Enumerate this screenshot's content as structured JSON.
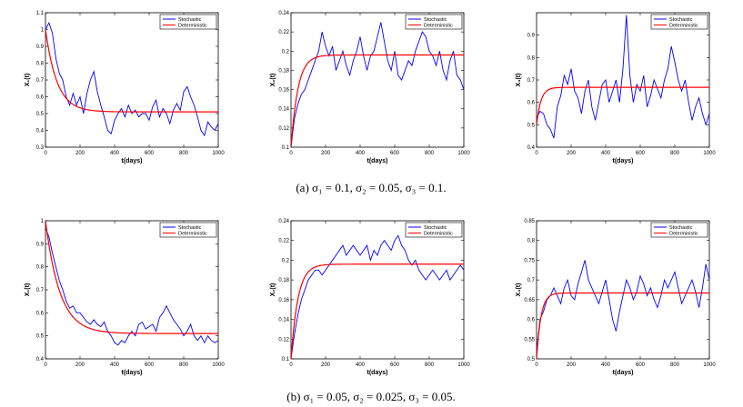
{
  "colors": {
    "stochastic": "#0000ff",
    "deterministic": "#ff0000"
  },
  "legend": {
    "stochastic": "Stochastic",
    "deterministic": "Deterministic"
  },
  "captions": {
    "a": "(a)  σ₁ = 0.1, σ₂ = 0.05, σ₃ = 0.1.",
    "b": "(b)  σ₁ = 0.05, σ₂ = 0.025, σ₃ = 0.05."
  },
  "chart_data": [
    {
      "id": "a1",
      "type": "line",
      "xlabel": "t(days)",
      "ylabel": "X₁(t)",
      "xlim": [
        0,
        1000
      ],
      "ylim": [
        0.3,
        1.1
      ],
      "xticks": [
        0,
        200,
        400,
        600,
        800,
        1000
      ],
      "yticks": [
        0.3,
        0.4,
        0.5,
        0.6,
        0.7,
        0.8,
        0.9,
        1,
        1.1
      ],
      "legend": "top-right",
      "deterministic": {
        "start": 1.0,
        "end": 0.51,
        "rate": 0.015
      },
      "series": [
        {
          "name": "Stochastic",
          "x": [
            0,
            20,
            40,
            60,
            80,
            100,
            120,
            140,
            160,
            180,
            200,
            220,
            240,
            260,
            280,
            300,
            320,
            340,
            360,
            380,
            400,
            420,
            440,
            460,
            480,
            500,
            520,
            540,
            560,
            580,
            600,
            620,
            640,
            660,
            680,
            700,
            720,
            740,
            760,
            780,
            800,
            820,
            840,
            860,
            880,
            900,
            920,
            940,
            960,
            980,
            1000
          ],
          "y": [
            1.0,
            1.04,
            0.98,
            0.83,
            0.74,
            0.7,
            0.6,
            0.55,
            0.62,
            0.55,
            0.6,
            0.5,
            0.62,
            0.7,
            0.75,
            0.63,
            0.55,
            0.48,
            0.4,
            0.38,
            0.46,
            0.5,
            0.53,
            0.48,
            0.55,
            0.5,
            0.52,
            0.48,
            0.5,
            0.5,
            0.46,
            0.54,
            0.58,
            0.48,
            0.53,
            0.5,
            0.44,
            0.52,
            0.56,
            0.52,
            0.63,
            0.66,
            0.6,
            0.55,
            0.48,
            0.4,
            0.37,
            0.45,
            0.42,
            0.4,
            0.44
          ]
        },
        {
          "name": "Deterministic"
        }
      ]
    },
    {
      "id": "a2",
      "type": "line",
      "xlabel": "t(days)",
      "ylabel": "X₂(t)",
      "xlim": [
        0,
        1000
      ],
      "ylim": [
        0.1,
        0.24
      ],
      "xticks": [
        0,
        200,
        400,
        600,
        800,
        1000
      ],
      "yticks": [
        0.1,
        0.12,
        0.14,
        0.16,
        0.18,
        0.2,
        0.22,
        0.24
      ],
      "legend": "top-right",
      "deterministic": {
        "start": 0.1,
        "end": 0.196,
        "rate": 0.025
      },
      "series": [
        {
          "name": "Stochastic",
          "x": [
            0,
            20,
            40,
            60,
            80,
            100,
            120,
            140,
            160,
            180,
            200,
            220,
            240,
            260,
            280,
            300,
            320,
            340,
            360,
            380,
            400,
            420,
            440,
            460,
            480,
            500,
            520,
            540,
            560,
            580,
            600,
            620,
            640,
            660,
            680,
            700,
            720,
            740,
            760,
            780,
            800,
            820,
            840,
            860,
            880,
            900,
            920,
            940,
            960,
            980,
            1000
          ],
          "y": [
            0.1,
            0.13,
            0.145,
            0.155,
            0.16,
            0.17,
            0.18,
            0.19,
            0.2,
            0.22,
            0.205,
            0.195,
            0.205,
            0.18,
            0.19,
            0.2,
            0.185,
            0.175,
            0.19,
            0.2,
            0.215,
            0.195,
            0.18,
            0.195,
            0.2,
            0.215,
            0.23,
            0.21,
            0.19,
            0.18,
            0.2,
            0.175,
            0.17,
            0.18,
            0.19,
            0.185,
            0.2,
            0.21,
            0.22,
            0.215,
            0.2,
            0.195,
            0.185,
            0.2,
            0.18,
            0.17,
            0.19,
            0.2,
            0.175,
            0.17,
            0.16
          ]
        },
        {
          "name": "Deterministic"
        }
      ]
    },
    {
      "id": "a3",
      "type": "line",
      "xlabel": "t(days)",
      "ylabel": "X₃(t)",
      "xlim": [
        0,
        1000
      ],
      "ylim": [
        0.4,
        1.0
      ],
      "xticks": [
        0,
        200,
        400,
        600,
        800,
        1000
      ],
      "yticks": [
        0.4,
        0.5,
        0.6,
        0.7,
        0.8,
        0.9
      ],
      "legend": "top-right",
      "deterministic": {
        "start": 0.5,
        "end": 0.667,
        "rate": 0.04
      },
      "series": [
        {
          "name": "Stochastic",
          "x": [
            0,
            20,
            40,
            60,
            80,
            100,
            120,
            140,
            160,
            180,
            200,
            220,
            240,
            260,
            280,
            300,
            320,
            340,
            360,
            380,
            400,
            420,
            440,
            460,
            480,
            500,
            520,
            540,
            560,
            580,
            600,
            620,
            640,
            660,
            680,
            700,
            720,
            740,
            760,
            780,
            800,
            820,
            840,
            860,
            880,
            900,
            920,
            940,
            960,
            980,
            1000
          ],
          "y": [
            0.53,
            0.56,
            0.55,
            0.5,
            0.48,
            0.44,
            0.58,
            0.63,
            0.72,
            0.68,
            0.75,
            0.65,
            0.62,
            0.55,
            0.65,
            0.7,
            0.58,
            0.52,
            0.6,
            0.68,
            0.7,
            0.6,
            0.65,
            0.7,
            0.6,
            0.75,
            0.99,
            0.72,
            0.6,
            0.68,
            0.65,
            0.72,
            0.58,
            0.63,
            0.7,
            0.66,
            0.62,
            0.7,
            0.75,
            0.85,
            0.78,
            0.7,
            0.65,
            0.7,
            0.6,
            0.52,
            0.58,
            0.62,
            0.55,
            0.5,
            0.55
          ]
        },
        {
          "name": "Deterministic"
        }
      ]
    },
    {
      "id": "b1",
      "type": "line",
      "xlabel": "t(days)",
      "ylabel": "X₁(t)",
      "xlim": [
        0,
        1000
      ],
      "ylim": [
        0.4,
        1.0
      ],
      "xticks": [
        0,
        200,
        400,
        600,
        800,
        1000
      ],
      "yticks": [
        0.4,
        0.5,
        0.6,
        0.7,
        0.8,
        0.9,
        1
      ],
      "legend": "top-right",
      "deterministic": {
        "start": 1.0,
        "end": 0.51,
        "rate": 0.012
      },
      "series": [
        {
          "name": "Stochastic",
          "x": [
            0,
            20,
            40,
            60,
            80,
            100,
            120,
            140,
            160,
            180,
            200,
            220,
            240,
            260,
            280,
            300,
            320,
            340,
            360,
            380,
            400,
            420,
            440,
            460,
            480,
            500,
            520,
            540,
            560,
            580,
            600,
            620,
            640,
            660,
            680,
            700,
            720,
            740,
            760,
            780,
            800,
            820,
            840,
            860,
            880,
            900,
            920,
            940,
            960,
            980,
            1000
          ],
          "y": [
            0.97,
            0.93,
            0.86,
            0.8,
            0.74,
            0.7,
            0.65,
            0.62,
            0.63,
            0.6,
            0.6,
            0.58,
            0.56,
            0.55,
            0.57,
            0.55,
            0.54,
            0.56,
            0.52,
            0.5,
            0.47,
            0.46,
            0.48,
            0.47,
            0.5,
            0.52,
            0.5,
            0.55,
            0.56,
            0.53,
            0.54,
            0.55,
            0.52,
            0.58,
            0.6,
            0.63,
            0.6,
            0.57,
            0.55,
            0.53,
            0.5,
            0.52,
            0.55,
            0.5,
            0.48,
            0.5,
            0.47,
            0.5,
            0.48,
            0.47,
            0.48
          ]
        },
        {
          "name": "Deterministic"
        }
      ]
    },
    {
      "id": "b2",
      "type": "line",
      "xlabel": "t(days)",
      "ylabel": "X₂(t)",
      "xlim": [
        0,
        1000
      ],
      "ylim": [
        0.1,
        0.24
      ],
      "xticks": [
        0,
        200,
        400,
        600,
        800,
        1000
      ],
      "yticks": [
        0.1,
        0.12,
        0.14,
        0.16,
        0.18,
        0.2,
        0.22,
        0.24
      ],
      "legend": "top-right",
      "deterministic": {
        "start": 0.1,
        "end": 0.196,
        "rate": 0.025
      },
      "series": [
        {
          "name": "Stochastic",
          "x": [
            0,
            20,
            40,
            60,
            80,
            100,
            120,
            140,
            160,
            180,
            200,
            220,
            240,
            260,
            280,
            300,
            320,
            340,
            360,
            380,
            400,
            420,
            440,
            460,
            480,
            500,
            520,
            540,
            560,
            580,
            600,
            620,
            640,
            660,
            680,
            700,
            720,
            740,
            760,
            780,
            800,
            820,
            840,
            860,
            880,
            900,
            920,
            940,
            960,
            980,
            1000
          ],
          "y": [
            0.1,
            0.125,
            0.145,
            0.16,
            0.17,
            0.18,
            0.185,
            0.19,
            0.19,
            0.185,
            0.19,
            0.195,
            0.2,
            0.205,
            0.21,
            0.215,
            0.205,
            0.21,
            0.215,
            0.21,
            0.205,
            0.21,
            0.215,
            0.2,
            0.21,
            0.205,
            0.215,
            0.22,
            0.215,
            0.21,
            0.22,
            0.225,
            0.215,
            0.21,
            0.2,
            0.195,
            0.2,
            0.19,
            0.185,
            0.18,
            0.185,
            0.19,
            0.185,
            0.18,
            0.185,
            0.19,
            0.18,
            0.185,
            0.19,
            0.195,
            0.19
          ]
        },
        {
          "name": "Deterministic"
        }
      ]
    },
    {
      "id": "b3",
      "type": "line",
      "xlabel": "t(days)",
      "ylabel": "X₃(t)",
      "xlim": [
        0,
        1000
      ],
      "ylim": [
        0.5,
        0.85
      ],
      "xticks": [
        0,
        200,
        400,
        600,
        800,
        1000
      ],
      "yticks": [
        0.5,
        0.55,
        0.6,
        0.65,
        0.7,
        0.75,
        0.8,
        0.85
      ],
      "legend": "top-right",
      "deterministic": {
        "start": 0.5,
        "end": 0.667,
        "rate": 0.04
      },
      "series": [
        {
          "name": "Stochastic",
          "x": [
            0,
            20,
            40,
            60,
            80,
            100,
            120,
            140,
            160,
            180,
            200,
            220,
            240,
            260,
            280,
            300,
            320,
            340,
            360,
            380,
            400,
            420,
            440,
            460,
            480,
            500,
            520,
            540,
            560,
            580,
            600,
            620,
            640,
            660,
            680,
            700,
            720,
            740,
            760,
            780,
            800,
            820,
            840,
            860,
            880,
            900,
            920,
            940,
            960,
            980,
            1000
          ],
          "y": [
            0.52,
            0.6,
            0.62,
            0.65,
            0.66,
            0.68,
            0.66,
            0.64,
            0.68,
            0.7,
            0.66,
            0.65,
            0.69,
            0.72,
            0.75,
            0.7,
            0.68,
            0.66,
            0.64,
            0.67,
            0.7,
            0.65,
            0.6,
            0.57,
            0.62,
            0.66,
            0.7,
            0.68,
            0.65,
            0.67,
            0.71,
            0.69,
            0.66,
            0.68,
            0.65,
            0.63,
            0.66,
            0.7,
            0.68,
            0.7,
            0.72,
            0.68,
            0.64,
            0.66,
            0.68,
            0.7,
            0.67,
            0.63,
            0.68,
            0.74,
            0.7
          ]
        },
        {
          "name": "Deterministic"
        }
      ]
    }
  ]
}
